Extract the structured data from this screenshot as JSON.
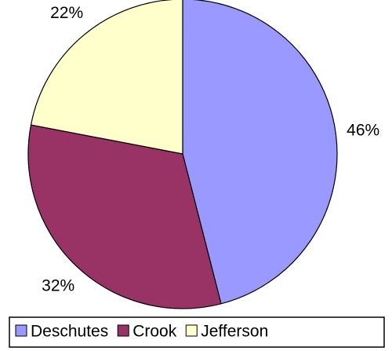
{
  "chart_data": {
    "type": "pie",
    "categories": [
      "Deschutes",
      "Crook",
      "Jefferson"
    ],
    "values": [
      46,
      32,
      22
    ],
    "value_labels": [
      "46%",
      "32%",
      "22%"
    ],
    "colors": [
      "#9999ff",
      "#993366",
      "#ffffcc"
    ],
    "legend": "bottom"
  }
}
